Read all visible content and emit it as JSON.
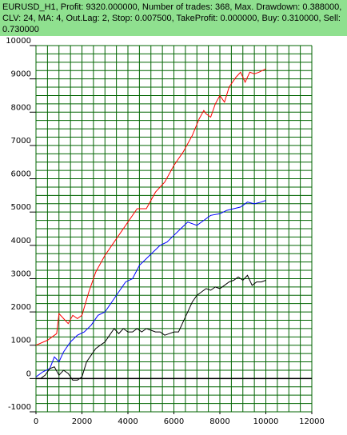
{
  "header": {
    "info": "EURUSD_H1, Profit: 9320.000000, Number of trades: 368, Max. Drawdown: 0.388000, CLV: 24, MA: 4, Out.Lag: 2, Stop: 0.007500, TakeProfit: 0.000000, Buy: 0.310000, Sell: 0.730000"
  },
  "colors": {
    "background": "#ffffff",
    "grid": "#006400",
    "header_bg": "#8fe08f",
    "zero_line": "#000000"
  },
  "chart_data": {
    "type": "line",
    "title": "EURUSD_H1, Profit: 9320.000000, Number of trades: 368, Max. Drawdown: 0.388000, CLV: 24, MA: 4, Out.Lag: 2, Stop: 0.007500, TakeProfit: 0.000000, Buy: 0.310000, Sell: 0.730000",
    "xlabel": "",
    "ylabel": "",
    "xlim": [
      0,
      12000
    ],
    "ylim": [
      -1000,
      10000
    ],
    "xticks": [
      0,
      2000,
      4000,
      6000,
      8000,
      10000,
      12000
    ],
    "yticks": [
      -1000,
      0,
      1000,
      2000,
      3000,
      4000,
      5000,
      6000,
      7000,
      8000,
      9000,
      10000
    ],
    "grid": true,
    "series": [
      {
        "color": "#ff0000",
        "x": [
          0,
          500,
          900,
          1000,
          1200,
          1400,
          1600,
          1800,
          2000,
          2300,
          2600,
          3000,
          3300,
          3600,
          4000,
          4400,
          4800,
          5200,
          5600,
          6000,
          6400,
          6800,
          7100,
          7300,
          7400,
          7600,
          7800,
          8000,
          8200,
          8400,
          8700,
          8900,
          9100,
          9300,
          9500,
          9700,
          10000
        ],
        "values": [
          1000,
          1150,
          1350,
          1950,
          1800,
          1650,
          1900,
          1800,
          1900,
          2600,
          3200,
          3700,
          4000,
          4300,
          4700,
          5100,
          5100,
          5600,
          5900,
          6400,
          6800,
          7300,
          7800,
          8050,
          7950,
          7850,
          8250,
          8500,
          8300,
          8750,
          9050,
          9200,
          8900,
          9200,
          9150,
          9200,
          9300
        ]
      },
      {
        "color": "#0000ff",
        "x": [
          0,
          300,
          600,
          800,
          1000,
          1200,
          1500,
          1800,
          2100,
          2400,
          2700,
          3000,
          3300,
          3600,
          3900,
          4200,
          4500,
          4800,
          5100,
          5400,
          5700,
          6000,
          6300,
          6600,
          7000,
          7300,
          7600,
          8000,
          8300,
          8600,
          8900,
          9200,
          9500,
          9800,
          10000
        ],
        "values": [
          50,
          200,
          300,
          650,
          500,
          800,
          1100,
          1300,
          1400,
          1600,
          1900,
          2000,
          2300,
          2600,
          2900,
          3000,
          3400,
          3600,
          3800,
          4000,
          4100,
          4300,
          4500,
          4700,
          4600,
          4750,
          4900,
          4950,
          5050,
          5100,
          5150,
          5300,
          5250,
          5300,
          5350
        ]
      },
      {
        "color": "#000000",
        "x": [
          0,
          200,
          400,
          600,
          800,
          1000,
          1200,
          1400,
          1600,
          1800,
          2000,
          2200,
          2400,
          2600,
          2800,
          3000,
          3200,
          3400,
          3600,
          3800,
          4000,
          4200,
          4400,
          4600,
          4800,
          5000,
          5200,
          5400,
          5600,
          5800,
          6000,
          6200,
          6400,
          6600,
          6800,
          7000,
          7200,
          7400,
          7600,
          7800,
          8000,
          8200,
          8400,
          8600,
          8800,
          9000,
          9200,
          9400,
          9600,
          9800,
          10000
        ],
        "values": [
          0,
          0,
          100,
          300,
          350,
          100,
          250,
          150,
          -50,
          -50,
          50,
          500,
          700,
          900,
          1000,
          1100,
          1300,
          1500,
          1350,
          1500,
          1400,
          1400,
          1500,
          1400,
          1500,
          1450,
          1400,
          1400,
          1300,
          1350,
          1400,
          1400,
          1700,
          2000,
          2300,
          2500,
          2600,
          2700,
          2650,
          2750,
          2700,
          2800,
          2900,
          2950,
          3050,
          2950,
          3100,
          2800,
          2900,
          2900,
          2950
        ]
      }
    ]
  }
}
